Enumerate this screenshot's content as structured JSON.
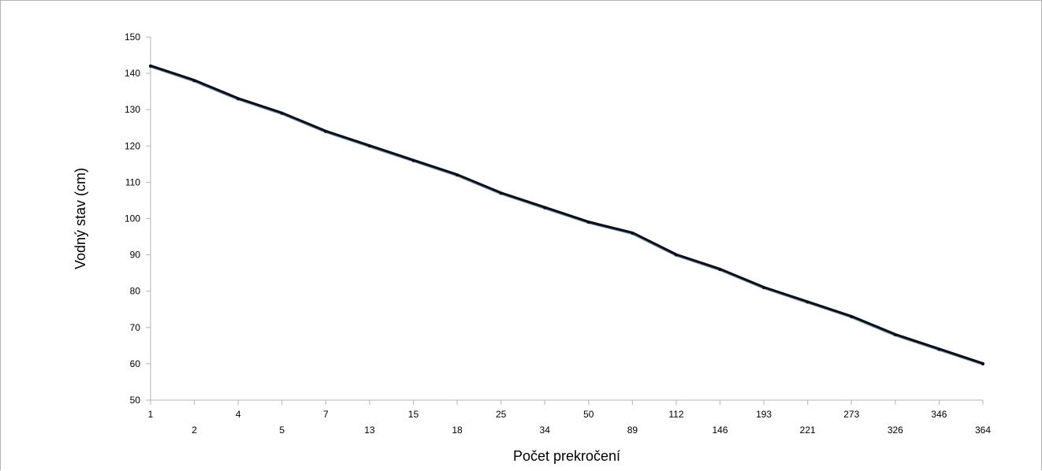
{
  "chart_data": {
    "type": "line",
    "title": "",
    "xlabel": "Počet prekročení",
    "ylabel": "Vodný stav (cm)",
    "categories": [
      "1",
      "2",
      "4",
      "5",
      "7",
      "13",
      "15",
      "18",
      "25",
      "34",
      "50",
      "89",
      "112",
      "146",
      "193",
      "221",
      "273",
      "326",
      "346",
      "364"
    ],
    "series": [
      {
        "values": [
          142,
          138,
          133,
          129,
          124,
          120,
          116,
          112,
          107,
          103,
          99,
          96,
          90,
          86,
          81,
          77,
          73,
          68,
          64,
          60
        ]
      }
    ],
    "ylim": [
      50,
      150
    ],
    "yticks": [
      50,
      60,
      70,
      80,
      90,
      100,
      110,
      120,
      130,
      140,
      150
    ],
    "grid": false,
    "legend": "none",
    "line_color": "#0a0f1e",
    "line_highlight_color": "#7fb2c8"
  }
}
